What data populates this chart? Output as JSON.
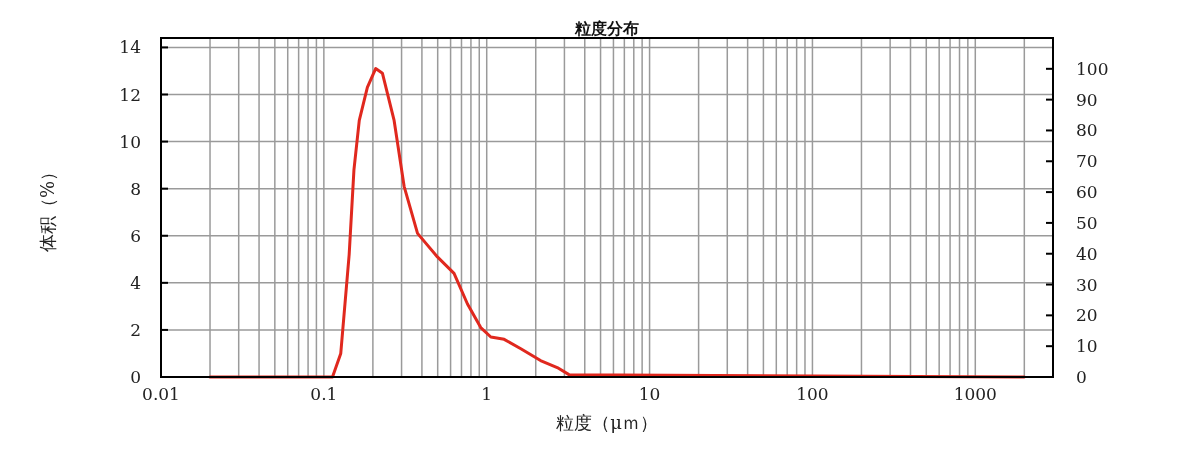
{
  "chart_data": {
    "type": "line",
    "title": "粒度分布",
    "xlabel": "粒度（μｍ）",
    "ylabel": "体积（%）",
    "log": "x",
    "grid": true,
    "xlim": [
      0.01,
      3000
    ],
    "xticks": [
      {
        "value": 0.01,
        "label": "0.01"
      },
      {
        "value": 0.02,
        "label": null
      },
      {
        "value": 0.03,
        "label": null
      },
      {
        "value": 0.04,
        "label": null
      },
      {
        "value": 0.05,
        "label": null
      },
      {
        "value": 0.06,
        "label": null
      },
      {
        "value": 0.07,
        "label": null
      },
      {
        "value": 0.08,
        "label": null
      },
      {
        "value": 0.09,
        "label": null
      },
      {
        "value": 0.1,
        "label": "0.1"
      },
      {
        "value": 0.2,
        "label": null
      },
      {
        "value": 0.3,
        "label": null
      },
      {
        "value": 0.4,
        "label": null
      },
      {
        "value": 0.5,
        "label": null
      },
      {
        "value": 0.6,
        "label": null
      },
      {
        "value": 0.7,
        "label": null
      },
      {
        "value": 0.8,
        "label": null
      },
      {
        "value": 0.9,
        "label": null
      },
      1,
      {
        "value": 2,
        "label": null
      },
      {
        "value": 3,
        "label": null
      },
      {
        "value": 4,
        "label": null
      },
      {
        "value": 5,
        "label": null
      },
      {
        "value": 6,
        "label": null
      },
      {
        "value": 7,
        "label": null
      },
      {
        "value": 8,
        "label": null
      },
      {
        "value": 9,
        "label": null
      },
      10,
      {
        "value": 20,
        "label": null
      },
      {
        "value": 30,
        "label": null
      },
      {
        "value": 40,
        "label": null
      },
      {
        "value": 50,
        "label": null
      },
      {
        "value": 60,
        "label": null
      },
      {
        "value": 70,
        "label": null
      },
      {
        "value": 80,
        "label": null
      },
      {
        "value": 90,
        "label": null
      },
      100,
      {
        "value": 200,
        "label": null
      },
      {
        "value": 300,
        "label": null
      },
      {
        "value": 400,
        "label": null
      },
      {
        "value": 500,
        "label": null
      },
      {
        "value": 600,
        "label": null
      },
      {
        "value": 700,
        "label": null
      },
      {
        "value": 800,
        "label": null
      },
      {
        "value": 900,
        "label": null
      },
      1000,
      {
        "value": 2000,
        "label": null
      }
    ],
    "ylim": [
      0,
      14.4
    ],
    "yticks": [
      0,
      2,
      4,
      6,
      8,
      10,
      12,
      14
    ],
    "y2lim": [
      0,
      110
    ],
    "y2ticks": [
      0,
      10,
      20,
      30,
      40,
      50,
      60,
      70,
      80,
      90,
      100
    ],
    "series": [
      {
        "color": "#e0281e",
        "x": [
          0.02,
          0.113,
          0.127,
          0.143,
          0.153,
          0.165,
          0.185,
          0.208,
          0.229,
          0.27,
          0.311,
          0.376,
          0.498,
          0.63,
          0.762,
          0.919,
          1.06,
          1.28,
          1.62,
          2.14,
          2.71,
          3.2,
          2000
        ],
        "values": [
          0,
          0,
          1.0,
          5.2,
          8.8,
          10.9,
          12.3,
          13.1,
          12.9,
          10.9,
          8.1,
          6.1,
          5.1,
          4.4,
          3.1,
          2.1,
          1.7,
          1.6,
          1.2,
          0.7,
          0.4,
          0.1,
          0
        ]
      }
    ]
  }
}
